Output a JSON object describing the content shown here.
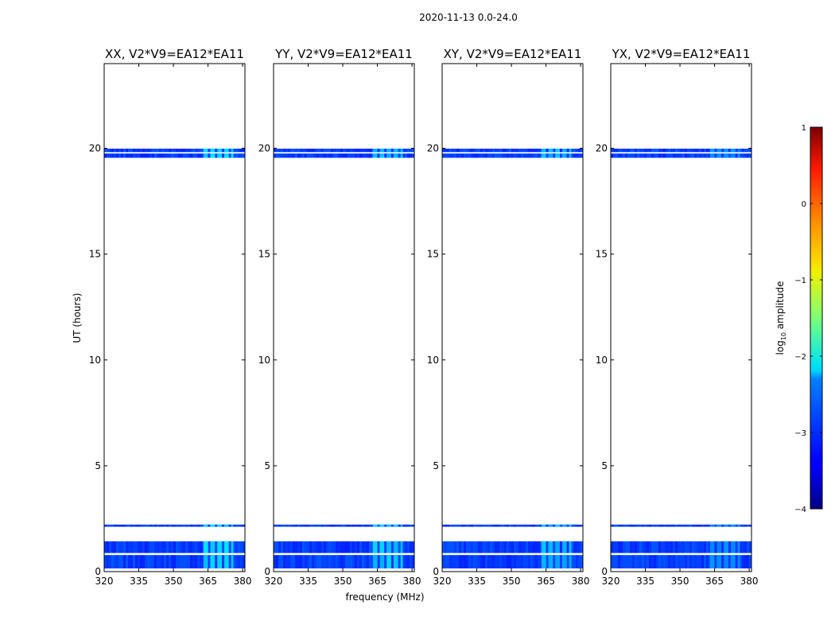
{
  "chart_data": {
    "type": "heatmap",
    "suptitle": "2020-11-13 0.0-24.0",
    "xlabel": "frequency (MHz)",
    "ylabel": "UT (hours)",
    "xlim": [
      320,
      381
    ],
    "ylim": [
      0,
      24
    ],
    "xticks": [
      320,
      335,
      350,
      365,
      380
    ],
    "yticks": [
      0,
      5,
      10,
      15,
      20
    ],
    "colorbar": {
      "label": "log10 amplitude",
      "label_main": "log",
      "label_sub": "10",
      "label_rest": " amplitude",
      "range": [
        -4,
        1
      ],
      "ticks": [
        {
          "value": -4,
          "label": "−4"
        },
        {
          "value": -3,
          "label": "−3"
        },
        {
          "value": -2,
          "label": "−2"
        },
        {
          "value": -1,
          "label": "−1"
        },
        {
          "value": 0,
          "label": "0"
        },
        {
          "value": 1,
          "label": "1"
        }
      ]
    },
    "data_bands": [
      {
        "start": 0.15,
        "end": 0.78
      },
      {
        "start": 0.88,
        "end": 1.43
      },
      {
        "start": 2.12,
        "end": 2.22
      },
      {
        "start": 19.55,
        "end": 19.75
      },
      {
        "start": 19.82,
        "end": 19.98
      }
    ],
    "bright_regions_mhz": [
      [
        363,
        365
      ],
      [
        366,
        368
      ],
      [
        369,
        371
      ],
      [
        372,
        374
      ],
      [
        375,
        376
      ]
    ],
    "base_amplitude_log10": -3.0,
    "bright_amplitude_log10": -2.2,
    "panels": [
      {
        "title": "XX, V2*V9=EA12*EA11",
        "brightness": 1.0
      },
      {
        "title": "YY, V2*V9=EA12*EA11",
        "brightness": 0.9
      },
      {
        "title": "XY, V2*V9=EA12*EA11",
        "brightness": 0.8
      },
      {
        "title": "YX, V2*V9=EA12*EA11",
        "brightness": 0.5
      }
    ]
  }
}
